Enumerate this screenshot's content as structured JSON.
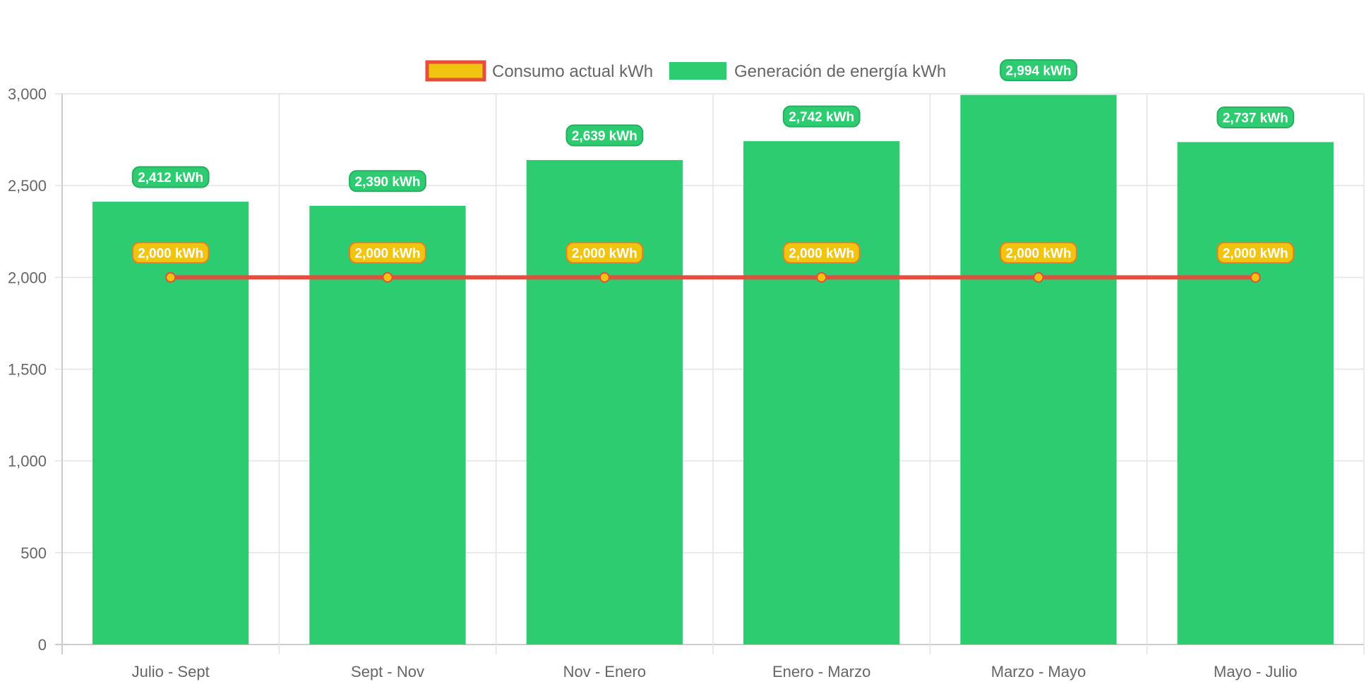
{
  "chart_data": {
    "type": "bar",
    "categories": [
      "Julio - Sept",
      "Sept - Nov",
      "Nov - Enero",
      "Enero - Marzo",
      "Marzo - Mayo",
      "Mayo - Julio"
    ],
    "series": [
      {
        "name": "Consumo actual kWh",
        "type": "line",
        "values": [
          2000,
          2000,
          2000,
          2000,
          2000,
          2000
        ],
        "labels": [
          "2,000 kWh",
          "2,000 kWh",
          "2,000 kWh",
          "2,000 kWh",
          "2,000 kWh",
          "2,000 kWh"
        ],
        "line_color": "#e74c3c",
        "fill_color": "#f1c40f"
      },
      {
        "name": "Generación de energía kWh",
        "type": "bar",
        "values": [
          2412,
          2390,
          2639,
          2742,
          2994,
          2737
        ],
        "labels": [
          "2,412 kWh",
          "2,390 kWh",
          "2,639 kWh",
          "2,742 kWh",
          "2,994 kWh",
          "2,737 kWh"
        ],
        "color": "#2ecc71"
      }
    ],
    "yticks": [
      "0",
      "500",
      "1,000",
      "1,500",
      "2,000",
      "2,500",
      "3,000"
    ],
    "ylim": [
      0,
      3000
    ],
    "grid": true,
    "legend_position": "top"
  }
}
